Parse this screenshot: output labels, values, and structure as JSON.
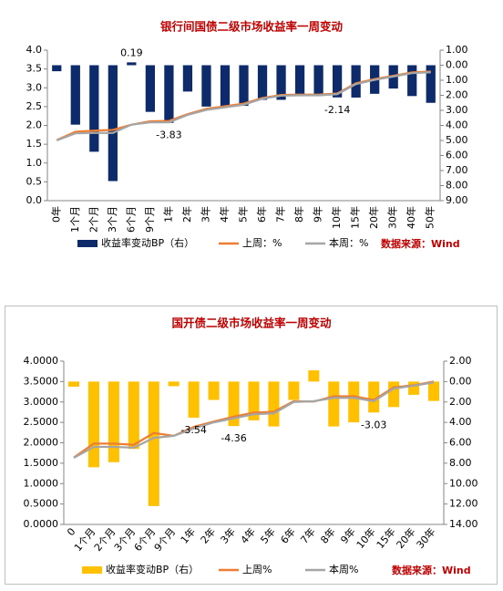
{
  "chart_data": [
    {
      "type": "combo",
      "title": "银行间国债二级市场收益率一周变动",
      "categories": [
        "0年",
        "1个月",
        "2个月",
        "3个月",
        "6个月",
        "9个月",
        "1年",
        "2年",
        "3年",
        "4年",
        "5年",
        "6年",
        "7年",
        "8年",
        "9年",
        "10年",
        "15年",
        "20年",
        "30年",
        "40年",
        "50年"
      ],
      "series": [
        {
          "name": "收益率变动BP（右）",
          "type": "bar",
          "axis": "y2",
          "color": "#0d2a6b",
          "values": [
            -0.4,
            -3.95,
            -5.75,
            -7.7,
            0.19,
            -3.1,
            -3.83,
            -1.75,
            -2.75,
            -2.75,
            -2.7,
            -2.3,
            -2.3,
            -2.05,
            -2.05,
            -2.14,
            -2.15,
            -1.9,
            -1.55,
            -2.05,
            -2.5
          ],
          "value_labels": [
            null,
            null,
            null,
            null,
            "0.19",
            null,
            "-3.83",
            null,
            null,
            null,
            null,
            null,
            null,
            null,
            null,
            "-2.14",
            null,
            null,
            null,
            null,
            null
          ]
        },
        {
          "name": "上周：%",
          "type": "line",
          "axis": "y",
          "color": "#ed7d31",
          "values": [
            1.61,
            1.83,
            1.86,
            1.88,
            2.02,
            2.11,
            2.12,
            2.3,
            2.44,
            2.51,
            2.58,
            2.73,
            2.81,
            2.82,
            2.82,
            2.85,
            3.12,
            3.23,
            3.32,
            3.41,
            3.43
          ]
        },
        {
          "name": "本周：%",
          "type": "line",
          "axis": "y",
          "color": "#a5a5a5",
          "values": [
            1.6,
            1.79,
            1.8,
            1.8,
            2.02,
            2.08,
            2.08,
            2.28,
            2.41,
            2.48,
            2.55,
            2.71,
            2.79,
            2.8,
            2.8,
            2.83,
            3.1,
            3.21,
            3.3,
            3.39,
            3.41
          ]
        }
      ],
      "ylim": [
        0,
        4
      ],
      "yticks": [
        {
          "value": 0,
          "label": "0.0"
        },
        {
          "value": 0.5,
          "label": "0.5"
        },
        {
          "value": 1,
          "label": "1.0"
        },
        {
          "value": 1.5,
          "label": "1.5"
        },
        {
          "value": 2,
          "label": "2.0"
        },
        {
          "value": 2.5,
          "label": "2.5"
        },
        {
          "value": 3,
          "label": "3.0"
        },
        {
          "value": 3.5,
          "label": "3.5"
        },
        {
          "value": 4,
          "label": "4.0"
        }
      ],
      "y2lim": [
        -9,
        1
      ],
      "y2ticks": [
        {
          "value": 1,
          "label": "1.00"
        },
        {
          "value": 0,
          "label": "0.00"
        },
        {
          "value": -1,
          "label": "1.00"
        },
        {
          "value": -2,
          "label": "2.00"
        },
        {
          "value": -3,
          "label": "3.00"
        },
        {
          "value": -4,
          "label": "4.00"
        },
        {
          "value": -5,
          "label": "5.00"
        },
        {
          "value": -6,
          "label": "6.00"
        },
        {
          "value": -7,
          "label": "7.00"
        },
        {
          "value": -8,
          "label": "8.00"
        },
        {
          "value": -9,
          "label": "9.00"
        }
      ],
      "source": "数据来源：Wind"
    },
    {
      "type": "combo",
      "title": "国开债二级市场收益率一周变动",
      "categories": [
        "0",
        "1个月",
        "2个月",
        "3个月",
        "6个月",
        "9个月",
        "1年",
        "2年",
        "3年",
        "4年",
        "5年",
        "6年",
        "7年",
        "8年",
        "9年",
        "10年",
        "15年",
        "20年",
        "30年"
      ],
      "series": [
        {
          "name": "收益率变动BP（右）",
          "type": "bar",
          "axis": "y2",
          "color": "#ffc000",
          "values": [
            -0.5,
            -8.4,
            -7.9,
            -6.6,
            -12.2,
            -0.45,
            -3.54,
            -1.8,
            -4.36,
            -3.8,
            -4.4,
            -1.8,
            1.1,
            -4.4,
            -4.0,
            -3.03,
            -2.5,
            -1.3,
            -1.9
          ],
          "value_labels": [
            null,
            null,
            null,
            null,
            null,
            null,
            "-3.54",
            null,
            "-4.36",
            null,
            null,
            null,
            null,
            null,
            null,
            "-3.03",
            null,
            null,
            null
          ]
        },
        {
          "name": "上周%",
          "type": "line",
          "axis": "y",
          "color": "#ed7d31",
          "values": [
            1.64,
            1.98,
            1.98,
            1.95,
            2.24,
            2.17,
            2.39,
            2.52,
            2.64,
            2.74,
            2.76,
            3.02,
            3.01,
            3.14,
            3.14,
            3.05,
            3.36,
            3.41,
            3.5
          ]
        },
        {
          "name": "本周%",
          "type": "line",
          "axis": "y",
          "color": "#a5a5a5",
          "values": [
            1.63,
            1.9,
            1.9,
            1.88,
            2.12,
            2.17,
            2.35,
            2.5,
            2.6,
            2.7,
            2.72,
            3.0,
            3.02,
            3.1,
            3.1,
            3.02,
            3.33,
            3.4,
            3.48
          ]
        }
      ],
      "ylim": [
        0,
        4
      ],
      "yticks": [
        {
          "value": 0,
          "label": "0.0000"
        },
        {
          "value": 0.5,
          "label": "0.5000"
        },
        {
          "value": 1,
          "label": "1.0000"
        },
        {
          "value": 1.5,
          "label": "1.5000"
        },
        {
          "value": 2,
          "label": "2.0000"
        },
        {
          "value": 2.5,
          "label": "2.5000"
        },
        {
          "value": 3,
          "label": "3.0000"
        },
        {
          "value": 3.5,
          "label": "3.5000"
        },
        {
          "value": 4,
          "label": "4.0000"
        }
      ],
      "y2lim": [
        -14,
        2
      ],
      "y2ticks": [
        {
          "value": 2,
          "label": "2.00"
        },
        {
          "value": 0,
          "label": "0.00"
        },
        {
          "value": -2,
          "label": "2.00"
        },
        {
          "value": -4,
          "label": "4.00"
        },
        {
          "value": -6,
          "label": "6.00"
        },
        {
          "value": -8,
          "label": "8.00"
        },
        {
          "value": -10,
          "label": "10.00",
          "color": "#ff0000"
        },
        {
          "value": -12,
          "label": "12.00",
          "color": "#ff0000"
        },
        {
          "value": -14,
          "label": "14.00",
          "color": "#ff0000"
        }
      ],
      "source": "数据来源：Wind"
    }
  ]
}
